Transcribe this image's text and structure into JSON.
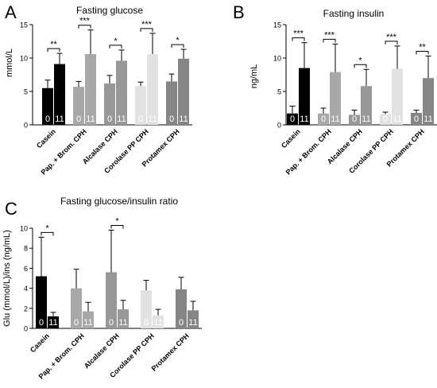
{
  "chart_data": [
    {
      "type": "bar",
      "panel_letter": "A",
      "title": "Fasting glucose",
      "ylabel": "mmol/L",
      "ylim": [
        0,
        15
      ],
      "yticks": [
        0,
        5,
        10,
        15
      ],
      "categories": [
        "Casein",
        "Pap. + Brom. CPH",
        "Alcalase CPH",
        "Corolase PP CPH",
        "Protamex CPH"
      ],
      "bar_labels": [
        "0",
        "11"
      ],
      "colors": [
        "#000000",
        "#a8a8a8",
        "#989898",
        "#e2e2e2",
        "#858585"
      ],
      "series": [
        {
          "label": "0",
          "values": [
            5.5,
            5.7,
            6.2,
            5.8,
            6.5
          ],
          "errors": [
            1.2,
            0.8,
            1.2,
            0.6,
            1.1
          ]
        },
        {
          "label": "11",
          "values": [
            9.1,
            10.6,
            9.6,
            10.6,
            9.9
          ],
          "errors": [
            1.6,
            3.6,
            1.6,
            3.1,
            1.4
          ]
        }
      ],
      "significance": [
        "**",
        "***",
        "*",
        "***",
        "*"
      ]
    },
    {
      "type": "bar",
      "panel_letter": "B",
      "title": "Fasting insulin",
      "ylabel": "ng/mL",
      "ylim": [
        0,
        15
      ],
      "yticks": [
        0,
        5,
        10,
        15
      ],
      "categories": [
        "Casein",
        "Pap. + Brom. CPH",
        "Alcalase CPH",
        "Corolase PP CPH",
        "Protamex CPH"
      ],
      "bar_labels": [
        "0",
        "11"
      ],
      "colors": [
        "#000000",
        "#a8a8a8",
        "#989898",
        "#e2e2e2",
        "#858585"
      ],
      "series": [
        {
          "label": "0",
          "values": [
            1.7,
            1.7,
            1.5,
            1.6,
            1.8
          ],
          "errors": [
            1.1,
            0.8,
            0.7,
            0.3,
            0.4
          ]
        },
        {
          "label": "11",
          "values": [
            8.5,
            7.9,
            5.8,
            8.4,
            7.0
          ],
          "errors": [
            3.8,
            4.2,
            2.5,
            3.4,
            3.3
          ]
        }
      ],
      "significance": [
        "***",
        "***",
        "*",
        "***",
        "**"
      ]
    },
    {
      "type": "bar",
      "panel_letter": "C",
      "title": "Fasting glucose/insulin ratio",
      "ylabel": "Glu (mmol/L)/ins (ng/mL)",
      "ylim": [
        0,
        10
      ],
      "yticks": [
        0,
        2,
        4,
        6,
        8,
        10
      ],
      "categories": [
        "Casein",
        "Pap. + Brom. CPH",
        "Alcalase CPH",
        "Corolase PP CPH",
        "Protamex CPH"
      ],
      "bar_labels": [
        "0",
        "11"
      ],
      "colors": [
        "#000000",
        "#a8a8a8",
        "#989898",
        "#e2e2e2",
        "#858585"
      ],
      "series": [
        {
          "label": "0",
          "values": [
            5.2,
            4.0,
            5.6,
            3.8,
            3.9
          ],
          "errors": [
            3.9,
            1.9,
            4.2,
            1.0,
            1.2
          ]
        },
        {
          "label": "11",
          "values": [
            1.2,
            1.7,
            1.9,
            1.3,
            1.8
          ],
          "errors": [
            0.4,
            0.9,
            0.9,
            0.6,
            0.9
          ]
        }
      ],
      "significance": [
        "*",
        "",
        "*",
        "",
        ""
      ]
    }
  ]
}
